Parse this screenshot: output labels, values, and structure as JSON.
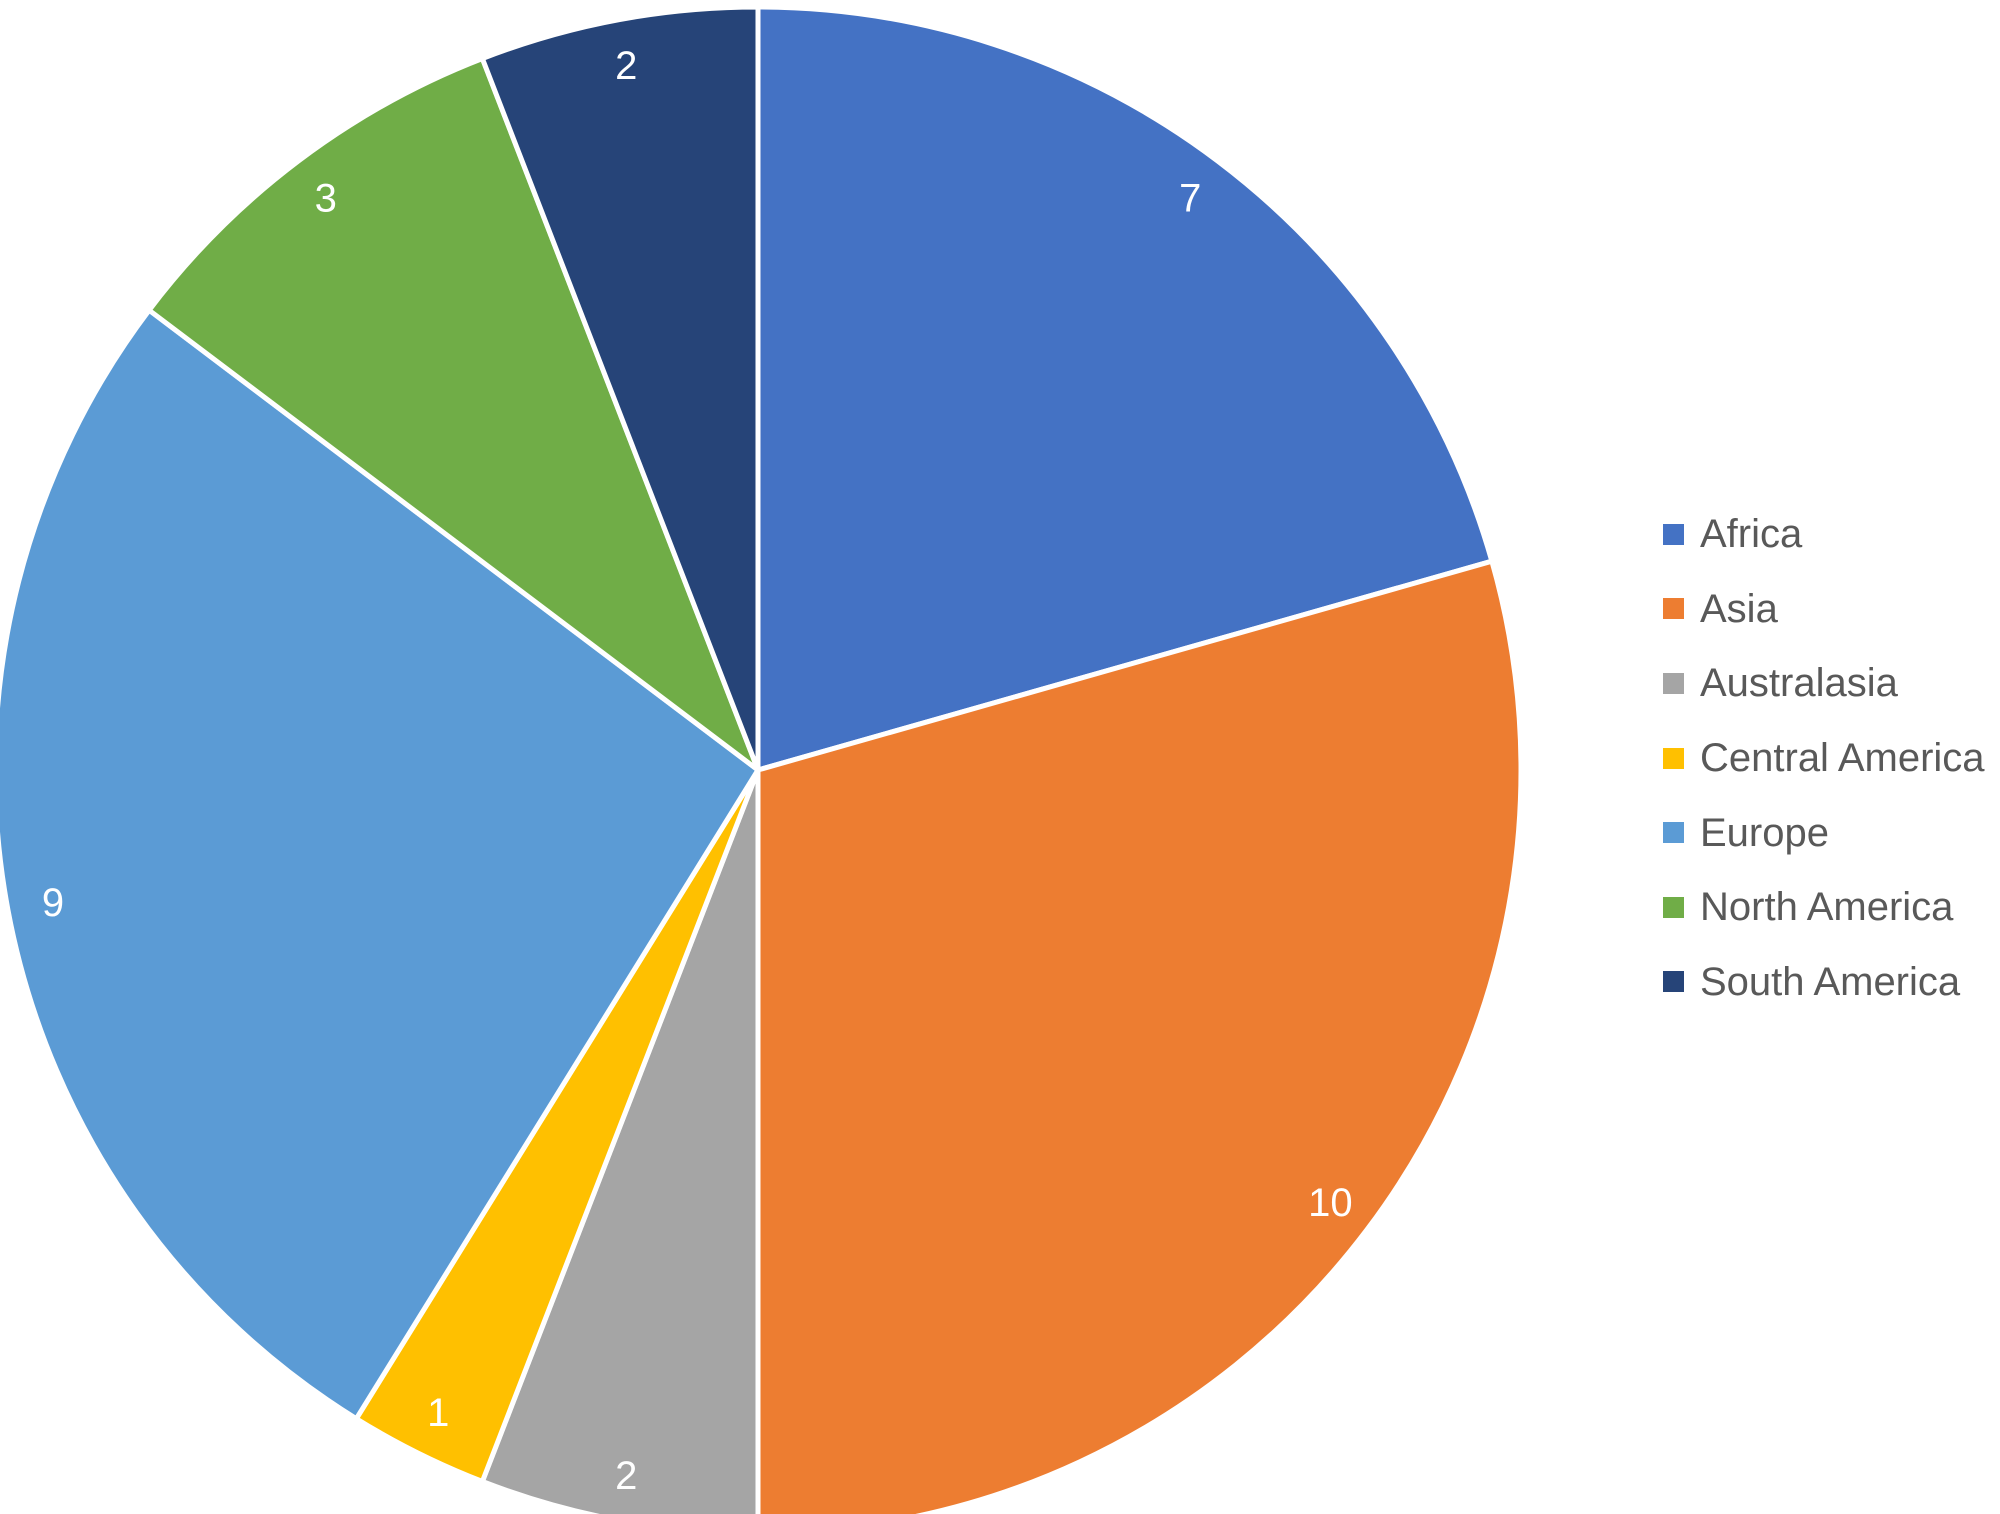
{
  "chart_data": {
    "type": "pie",
    "title": "",
    "categories": [
      "Africa",
      "Asia",
      "Australasia",
      "Central America",
      "Europe",
      "North America",
      "South America"
    ],
    "values": [
      7,
      10,
      2,
      1,
      9,
      3,
      2
    ],
    "data_labels": [
      "7",
      "10",
      "2",
      "1",
      "9",
      "3",
      "2"
    ],
    "colors": [
      "#4472C4",
      "#ED7D31",
      "#A5A5A5",
      "#FFC000",
      "#5B9BD5",
      "#70AD47",
      "#264478"
    ],
    "start_angle_deg": 0,
    "direction": "clockwise",
    "legend_position": "right",
    "legend_text_color": "#595959",
    "data_label_color": "#FFFFFF",
    "slice_border_color": "#FFFFFF",
    "background": "#FFFFFF"
  }
}
